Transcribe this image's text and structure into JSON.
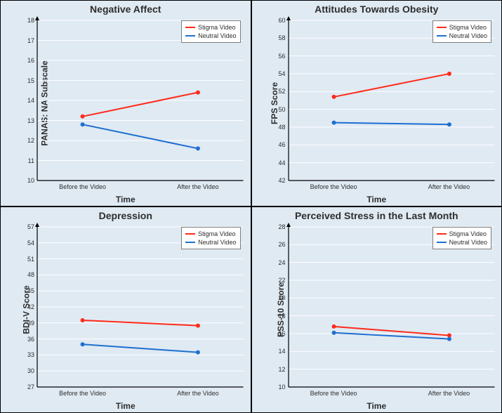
{
  "background_color": "#dfeaf3",
  "axis_color": "#000000",
  "gridline_color": "#ffffff",
  "series_colors": {
    "stigma": "#ff2a1a",
    "neutral": "#1f6fd0"
  },
  "marker_radius": 3,
  "line_width": 2,
  "legend": {
    "items": [
      {
        "label": "Stigma Video",
        "color": "#ff2a1a"
      },
      {
        "label": "Neutral Video",
        "color": "#1f6fd0"
      }
    ],
    "bg": "#ffffff",
    "border": "#7d7d7d",
    "fontsize": 9
  },
  "x_categories": [
    "Before the Video",
    "After the Video"
  ],
  "x_label": "Time",
  "title_fontsize": 14,
  "label_fontsize": 12,
  "tick_fontsize": 9,
  "panels": [
    {
      "id": "na",
      "title": "Negative Affect",
      "ylabel": "PANAS: NA Subscale",
      "ylim": [
        10,
        18
      ],
      "ytick_step": 1,
      "series": [
        {
          "key": "stigma",
          "values": [
            13.2,
            14.4
          ]
        },
        {
          "key": "neutral",
          "values": [
            12.8,
            11.6
          ]
        }
      ]
    },
    {
      "id": "fps",
      "title": "Attitudes Towards Obesity",
      "ylabel": "FPS Score",
      "ylim": [
        42,
        60
      ],
      "ytick_step": 2,
      "series": [
        {
          "key": "stigma",
          "values": [
            51.4,
            54.0
          ]
        },
        {
          "key": "neutral",
          "values": [
            48.5,
            48.3
          ]
        }
      ]
    },
    {
      "id": "bdi",
      "title": "Depression",
      "ylabel": "BDI-V Score",
      "ylim": [
        27,
        57
      ],
      "ytick_step": 3,
      "series": [
        {
          "key": "stigma",
          "values": [
            39.5,
            38.5
          ]
        },
        {
          "key": "neutral",
          "values": [
            35.0,
            33.5
          ]
        }
      ]
    },
    {
      "id": "pss",
      "title": "Perceived Stress in the Last Month",
      "ylabel": "PSS-10 Score",
      "ylim": [
        10,
        28
      ],
      "ytick_step": 2,
      "series": [
        {
          "key": "stigma",
          "values": [
            16.8,
            15.8
          ]
        },
        {
          "key": "neutral",
          "values": [
            16.1,
            15.4
          ]
        }
      ]
    }
  ]
}
